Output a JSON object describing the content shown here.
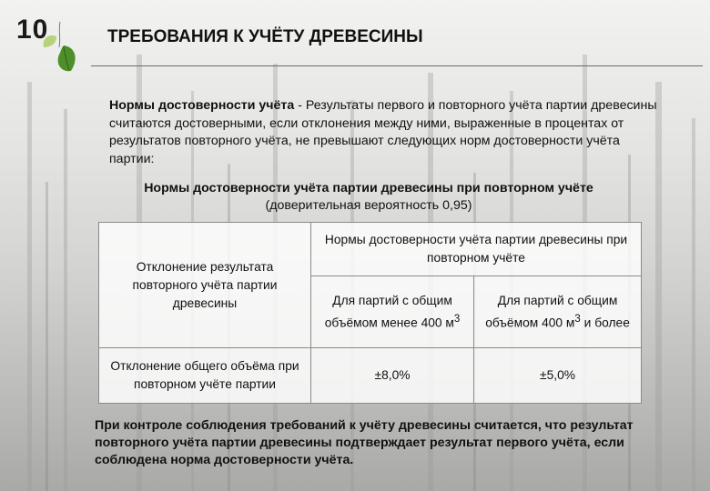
{
  "slide_number": "10",
  "title": "ТРЕБОВАНИЯ К УЧЁТУ ДРЕВЕСИНЫ",
  "intro": {
    "term": "Нормы достоверности учёта",
    "text": " - Результаты первого и повторного учёта партии древесины считаются достоверными, если отклонения между ними, выраженные в процентах от результатов повторного учёта, не превышают следующих норм достоверности учёта партии:"
  },
  "subtitle": {
    "main": "Нормы достоверности учёта партии древесины при повторном учёте",
    "note": "(доверительная вероятность 0,95)"
  },
  "table": {
    "row_header": "Отклонение результата повторного учёта партии древесины",
    "col_header": "Нормы достоверности учёта партии древесины при повторном учёте",
    "col1": "Для партий с общим объёмом менее 400 м",
    "col2_before": "Для партий с общим объёмом 400 м",
    "col2_after": " и более",
    "unit_power": "3",
    "row_label": "Отклонение общего объёма при повторном учёте партии",
    "val1": "±8,0%",
    "val2": "±5,0%"
  },
  "conclusion": "При контроле соблюдения требований к учёту древесины считается, что результат повторного учёта партии древесины подтверждает результат первого учёта, если соблюдена норма достоверности учёта.",
  "colors": {
    "background": "#d3d3d1",
    "leaf": "#4f8f2a",
    "text": "#111111"
  },
  "icons": [
    "birch-leaf-icon"
  ]
}
